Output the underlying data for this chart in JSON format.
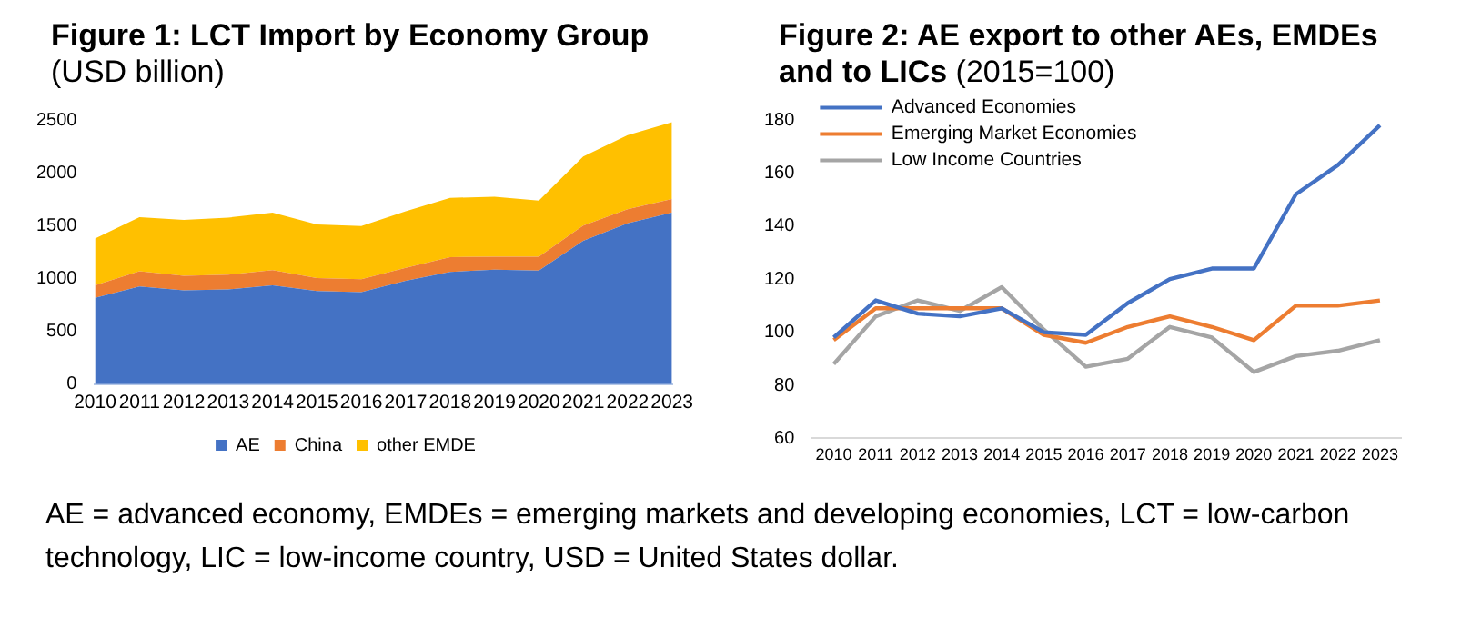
{
  "chart_data": [
    {
      "type": "area",
      "title": "Figure 1:  LCT Import by Economy Group",
      "subtitle": "(USD billion)",
      "stacked": true,
      "legend": "bottom",
      "grid": false,
      "categories": [
        "2010",
        "2011",
        "2012",
        "2013",
        "2014",
        "2015",
        "2016",
        "2017",
        "2018",
        "2019",
        "2020",
        "2021",
        "2022",
        "2023"
      ],
      "ylim": [
        0,
        2500
      ],
      "yticks": [
        0,
        500,
        1000,
        1500,
        2000,
        2500
      ],
      "series": [
        {
          "name": "AE",
          "color": "#4472c4",
          "values": [
            817,
            924,
            887,
            897,
            935,
            881,
            871,
            978,
            1063,
            1084,
            1074,
            1357,
            1522,
            1624
          ]
        },
        {
          "name": "China",
          "color": "#ed7d31",
          "values": [
            118,
            144,
            139,
            139,
            144,
            123,
            123,
            122,
            139,
            123,
            133,
            144,
            134,
            128
          ]
        },
        {
          "name": "other EMDE",
          "color": "#ffc000",
          "values": [
            443,
            513,
            528,
            540,
            545,
            508,
            502,
            535,
            561,
            567,
            529,
            652,
            700,
            727
          ]
        }
      ],
      "annotations": [
        "AE = advanced economy, EMDEs = emerging markets and developing economies, LCT = low-carbon technology, LIC = low-income country, USD = United States dollar."
      ]
    },
    {
      "type": "line",
      "title": "Figure 2: AE export to other AEs, EMDEs and to LICs",
      "subtitle": "(2015=100)",
      "legend": "top left",
      "grid": false,
      "marker": "none",
      "categories": [
        "2010",
        "2011",
        "2012",
        "2013",
        "2014",
        "2015",
        "2016",
        "2017",
        "2018",
        "2019",
        "2020",
        "2021",
        "2022",
        "2023"
      ],
      "ylim": [
        60,
        180
      ],
      "yticks": [
        60,
        80,
        100,
        120,
        140,
        160,
        180
      ],
      "series": [
        {
          "name": "Advanced Economies",
          "color": "#4472c4",
          "values": [
            98,
            112,
            107,
            106,
            109,
            100,
            99,
            111,
            120,
            124,
            124,
            152,
            163,
            178
          ]
        },
        {
          "name": "Emerging Market Economies",
          "color": "#ed7d31",
          "values": [
            97,
            109,
            109,
            109,
            109,
            99,
            96,
            102,
            106,
            102,
            97,
            110,
            110,
            112
          ]
        },
        {
          "name": "Low Income Countries",
          "color": "#a5a5a5",
          "values": [
            88,
            106,
            112,
            108,
            117,
            101,
            87,
            90,
            102,
            98,
            85,
            91,
            93,
            97
          ]
        }
      ]
    }
  ]
}
